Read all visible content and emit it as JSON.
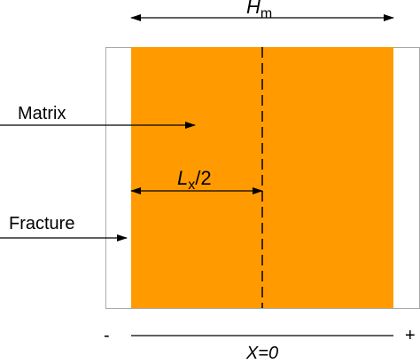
{
  "labels": {
    "width": {
      "main": "H",
      "sub": "m"
    },
    "matrix": "Matrix",
    "fracture": "Fracture",
    "half_length": {
      "main": "L",
      "sub": "x",
      "suffix": "/2"
    },
    "axis": {
      "minus": "-",
      "plus": "+",
      "origin": "X=0"
    }
  }
}
